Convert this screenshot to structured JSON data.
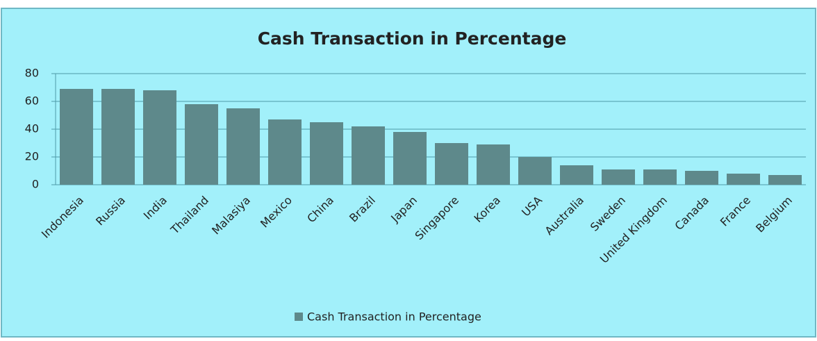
{
  "chart_data": {
    "type": "bar",
    "title": "Cash Transaction in Percentage",
    "categories": [
      "Indonesia",
      "Russia",
      "India",
      "Thailand",
      "Malasiya",
      "Mexico",
      "China",
      "Brazil",
      "Japan",
      "Singapore",
      "Korea",
      "USA",
      "Australia",
      "Sweden",
      "United Kingdom",
      "Canada",
      "France",
      "Belgium"
    ],
    "series": [
      {
        "name": "Cash Transaction in Percentage",
        "color": "#5e898b",
        "values": [
          69,
          69,
          68,
          58,
          55,
          47,
          45,
          42,
          38,
          30,
          29,
          20,
          14,
          11,
          11,
          10,
          8,
          7
        ]
      }
    ],
    "ylim": [
      0,
      80
    ],
    "yticks": [
      0,
      20,
      40,
      60,
      80
    ],
    "grid": true,
    "legend": "bottom"
  }
}
